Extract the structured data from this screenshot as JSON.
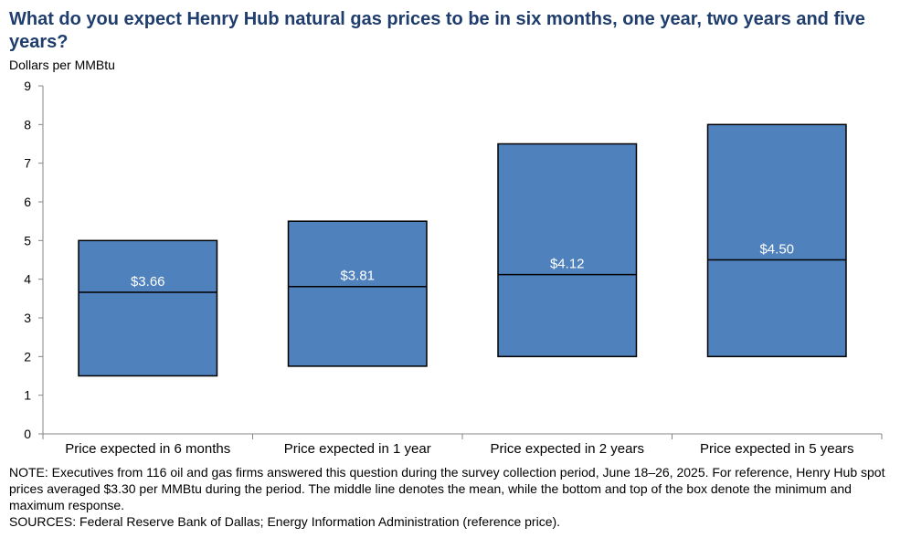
{
  "title": "What do you expect Henry Hub natural gas prices to be in six months, one year, two years and five years?",
  "units_label": "Dollars  per MMBtu",
  "chart_data": {
    "type": "box",
    "ylim": [
      0,
      9
    ],
    "yticks": [
      0,
      1,
      2,
      3,
      4,
      5,
      6,
      7,
      8,
      9
    ],
    "categories": [
      "Price expected in 6 months",
      "Price expected in 1 year",
      "Price expected in 2 years",
      "Price expected in 5 years"
    ],
    "min": [
      1.5,
      1.75,
      2.0,
      2.0
    ],
    "max": [
      5.0,
      5.5,
      7.5,
      8.0
    ],
    "mean": [
      3.66,
      3.81,
      4.12,
      4.5
    ],
    "mean_labels": [
      "$3.66",
      "$3.81",
      "$4.12",
      "$4.50"
    ],
    "box_color": "#4f81bd",
    "grid": false
  },
  "note": "NOTE:  Executives  from 116 oil and gas firms answered this question during the survey collection period, June 18–26, 2025. For reference, Henry Hub spot prices averaged  $3.30 per MMBtu  during the period. The middle line denotes the mean, while the bottom and top of the box denote the minimum  and maximum  response.",
  "sources": "SOURCES:  Federal Reserve Bank of Dallas; Energy Information Administration  (reference price)."
}
